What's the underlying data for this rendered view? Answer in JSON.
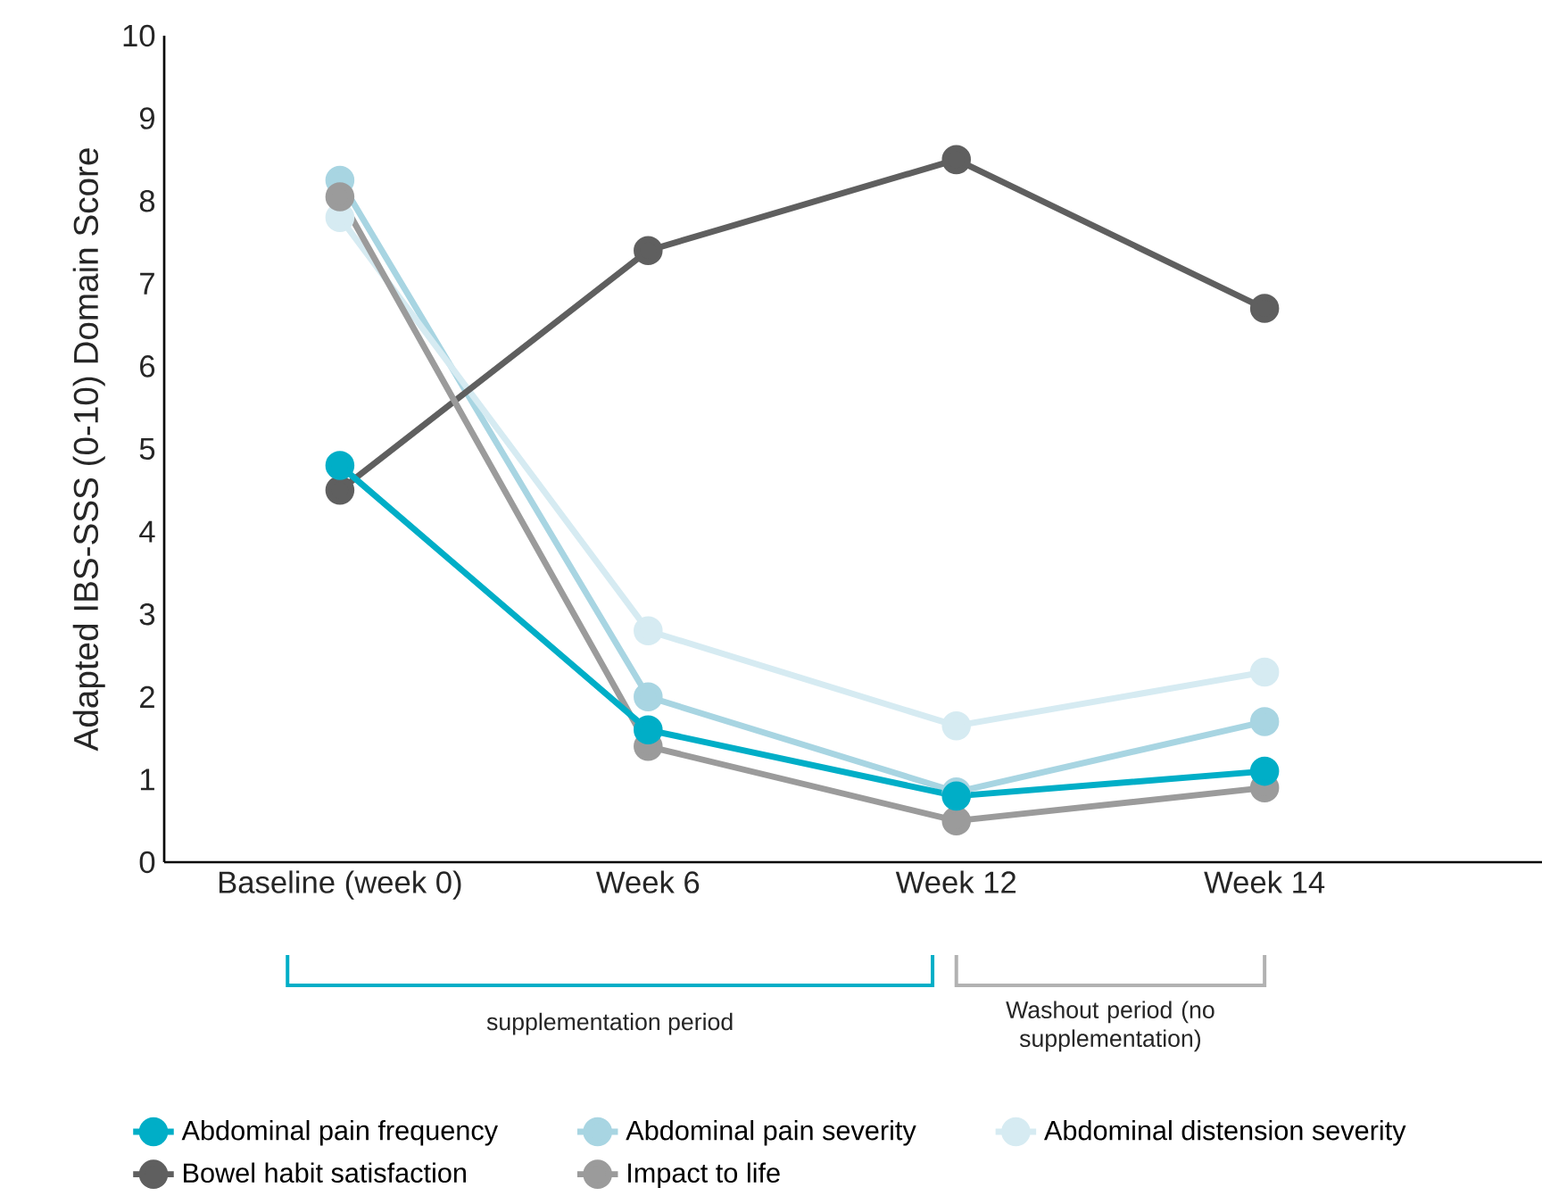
{
  "chart_data": {
    "type": "line",
    "ylabel": "Adapted IBS-SSS (0-10) Domain Score",
    "categories": [
      "Baseline (week 0)",
      "Week 6",
      "Week 12",
      "Week 14"
    ],
    "ylim": [
      0,
      10
    ],
    "yticks": [
      0,
      1,
      2,
      3,
      4,
      5,
      6,
      7,
      8,
      9,
      10
    ],
    "marker": "circle",
    "line_style": "solid",
    "legend": "bottom",
    "series": [
      {
        "name": "Abdominal pain frequency",
        "color": "#00aec7",
        "values": [
          4.8,
          1.6,
          0.8,
          1.1
        ]
      },
      {
        "name": "Abdominal pain severity",
        "color": "#a8d5e2",
        "values": [
          8.25,
          2.0,
          0.85,
          1.7
        ]
      },
      {
        "name": "Abdominal distension severity",
        "color": "#d6ebf2",
        "values": [
          7.8,
          2.8,
          1.65,
          2.3
        ]
      },
      {
        "name": "Bowel habit satisfaction",
        "color": "#5f5f5f",
        "values": [
          4.5,
          7.4,
          8.5,
          6.7
        ]
      },
      {
        "name": "Impact to life",
        "color": "#9b9b9b",
        "values": [
          8.05,
          1.4,
          0.5,
          0.9
        ]
      }
    ],
    "annotations": [
      "supplementation period",
      "Washout period (no supplementation)"
    ]
  }
}
